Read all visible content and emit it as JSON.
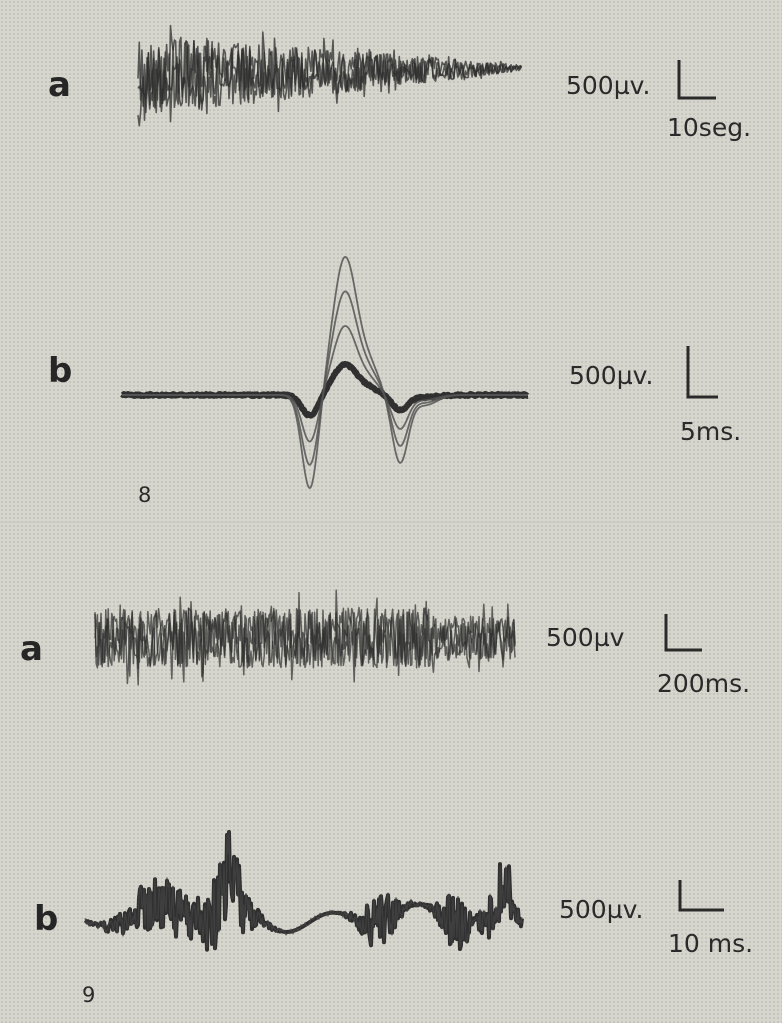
{
  "figures": [
    {
      "number": "8",
      "panels": [
        {
          "label": "a",
          "voltage_scale": "500µv.",
          "time_scale": "10seg."
        },
        {
          "label": "b",
          "voltage_scale": "500µv.",
          "time_scale": "5ms."
        }
      ]
    },
    {
      "number": "9",
      "panels": [
        {
          "label": "a",
          "voltage_scale": "500µv",
          "time_scale": "200ms."
        },
        {
          "label": "b",
          "voltage_scale": "500µv.",
          "time_scale": "10 ms."
        }
      ]
    }
  ]
}
